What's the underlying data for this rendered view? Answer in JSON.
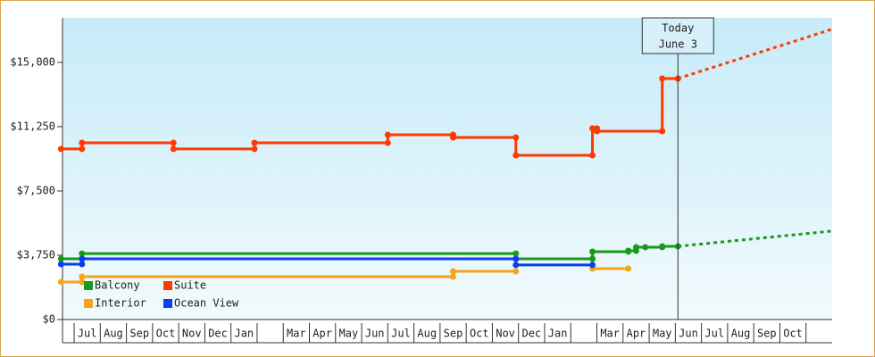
{
  "chart_data": {
    "type": "step-line",
    "categories": [
      "Jul",
      "Aug",
      "Sep",
      "Oct",
      "Nov",
      "Dec",
      "Jan",
      null,
      "Mar",
      "Apr",
      "May",
      "Jun",
      "Jul",
      "Aug",
      "Sep",
      "Oct",
      "Nov",
      "Dec",
      "Jan",
      null,
      "Mar",
      "Apr",
      "May",
      "Jun",
      "Jul",
      "Aug",
      "Sep",
      "Oct"
    ],
    "xlim": [
      -0.5,
      29
    ],
    "ylim": [
      0,
      17600
    ],
    "yticks": [
      {
        "value": 0,
        "label": "$0"
      },
      {
        "value": 3750,
        "label": "$3,750"
      },
      {
        "value": 7500,
        "label": "$7,500"
      },
      {
        "value": 11250,
        "label": "$11,250"
      },
      {
        "value": 15000,
        "label": "$15,000"
      }
    ],
    "annotation": {
      "x": 23.1,
      "lines": [
        "Today",
        "June 3"
      ]
    },
    "series": [
      {
        "name": "Balcony",
        "color": "#1a9a1a",
        "x": [
          -0.5,
          0.3,
          0.3,
          16.9,
          16.9,
          19.83,
          19.83,
          21.2,
          21.2,
          21.5,
          21.5,
          21.85,
          22.5,
          22.5,
          23.1
        ],
        "values": [
          3540,
          3540,
          3850,
          3850,
          3540,
          3540,
          3960,
          3960,
          4010,
          4010,
          4220,
          4220,
          4220,
          4270,
          4270
        ],
        "forecast": {
          "x": [
            23.1,
            28.98
          ],
          "values": [
            4270,
            5160
          ]
        }
      },
      {
        "name": "Suite",
        "color": "#ff3a00",
        "x": [
          -0.5,
          0.3,
          0.3,
          3.8,
          3.8,
          6.9,
          6.9,
          12.0,
          12.0,
          14.5,
          14.5,
          16.9,
          16.9,
          19.83,
          19.83,
          20.0,
          20.0,
          22.5,
          22.5,
          23.1
        ],
        "values": [
          9950,
          9950,
          10310,
          10310,
          9950,
          9950,
          10310,
          10310,
          10780,
          10780,
          10620,
          10620,
          9580,
          9580,
          11150,
          11150,
          10990,
          10990,
          14060,
          14060
        ],
        "forecast": {
          "x": [
            23.1,
            28.98
          ],
          "values": [
            14060,
            16930
          ]
        }
      },
      {
        "name": "Interior",
        "color": "#f5a51c",
        "x": [
          -0.5,
          0.3,
          0.3,
          14.5,
          14.5,
          16.9,
          18.0,
          19.83,
          21.2
        ],
        "values": [
          2190,
          2190,
          2500,
          2500,
          2810,
          2810,
          null,
          2970,
          2970
        ]
      },
      {
        "name": "Ocean View",
        "color": "#0b3ef0",
        "x": [
          -0.5,
          0.3,
          0.3,
          16.9,
          16.9,
          19.83
        ],
        "values": [
          3230,
          3230,
          3540,
          3540,
          3180,
          3180
        ]
      }
    ]
  }
}
